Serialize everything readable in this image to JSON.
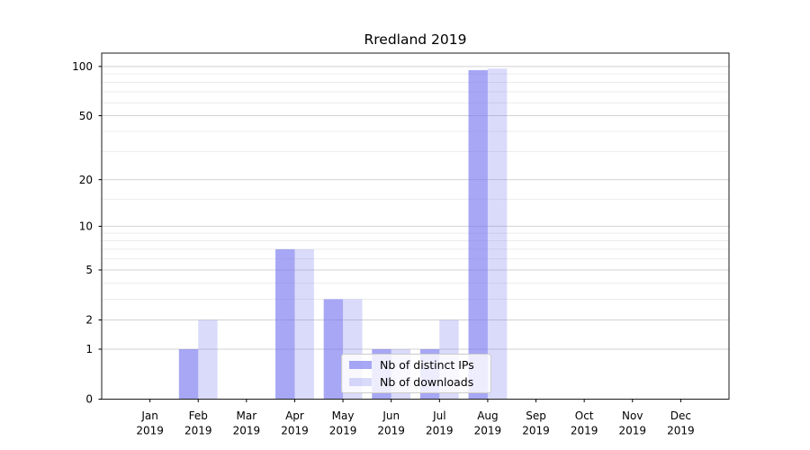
{
  "chart_data": {
    "type": "bar",
    "title": "Rredland 2019",
    "year": "2019",
    "categories": [
      "Jan",
      "Feb",
      "Mar",
      "Apr",
      "May",
      "Jun",
      "Jul",
      "Aug",
      "Sep",
      "Oct",
      "Nov",
      "Dec"
    ],
    "series": [
      {
        "key": "distinct-ips",
        "name": "Nb of distinct IPs",
        "color": "rgba(120,120,240,0.65)",
        "values": [
          0,
          1,
          0,
          7,
          3,
          1,
          1,
          95,
          0,
          0,
          0,
          0
        ]
      },
      {
        "key": "downloads",
        "name": "Nb of downloads",
        "color": "rgba(120,120,240,0.27)",
        "values": [
          0,
          2,
          0,
          7,
          3,
          1,
          2,
          97,
          0,
          0,
          0,
          0
        ]
      }
    ],
    "yscale": "log1p",
    "yticks_major": [
      0,
      1,
      2,
      5,
      10,
      20,
      50,
      100
    ],
    "yticks_minor": [
      3,
      4,
      6,
      7,
      8,
      9,
      15,
      30,
      40,
      60,
      70,
      80,
      90
    ],
    "ylim": [
      0,
      122
    ],
    "grid": true,
    "legend_position": "lower-center",
    "colors": {
      "grid_major": "#d2d2d2",
      "grid_minor": "#ececec",
      "spine": "#1a1a1a",
      "tick_label": "#000000"
    }
  }
}
